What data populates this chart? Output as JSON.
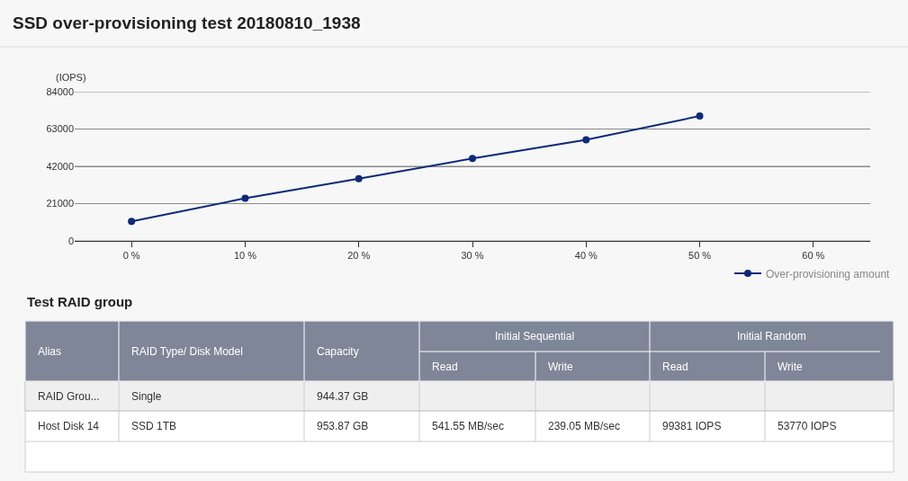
{
  "chart_data": [
    {
      "type": "line",
      "title": "SSD over-provisioning test 20180810_1938",
      "ylabel": "(IOPS)",
      "x": [
        0,
        10,
        20,
        30,
        40,
        50
      ],
      "series": [
        {
          "name": "Over-provisioning amount",
          "color": "#0d2a78",
          "values": [
            11000,
            24000,
            35000,
            46400,
            56900,
            70300
          ]
        }
      ],
      "xlim": [
        -5,
        65
      ],
      "xticks": [
        {
          "value": 0,
          "label": "0 %"
        },
        {
          "value": 10,
          "label": "10 %"
        },
        {
          "value": 20,
          "label": "20 %"
        },
        {
          "value": 30,
          "label": "30 %"
        },
        {
          "value": 40,
          "label": "40 %"
        },
        {
          "value": 50,
          "label": "50 %"
        },
        {
          "value": 60,
          "label": "60 %"
        }
      ],
      "ylim": [
        0,
        84000
      ],
      "yticks": [
        0,
        21000,
        42000,
        63000,
        84000
      ],
      "grid": "y",
      "legend": "bottom right",
      "marker": "circle",
      "line_style": "solid"
    },
    {
      "type": "other",
      "title": "Test RAID group",
      "annotations": [
        "Alias",
        "RAID Type/ Disk Model",
        "Capacity",
        "Initial Sequential",
        "Initial Random",
        "Read",
        "Write",
        "Read",
        "Write",
        "RAID Grou...",
        "Single",
        "944.37 GB",
        "Host Disk 14",
        "SSD 1TB",
        "953.87 GB",
        "541.55 MB/sec",
        "239.05 MB/sec",
        "99381 IOPS",
        "53770 IOPS"
      ]
    }
  ]
}
